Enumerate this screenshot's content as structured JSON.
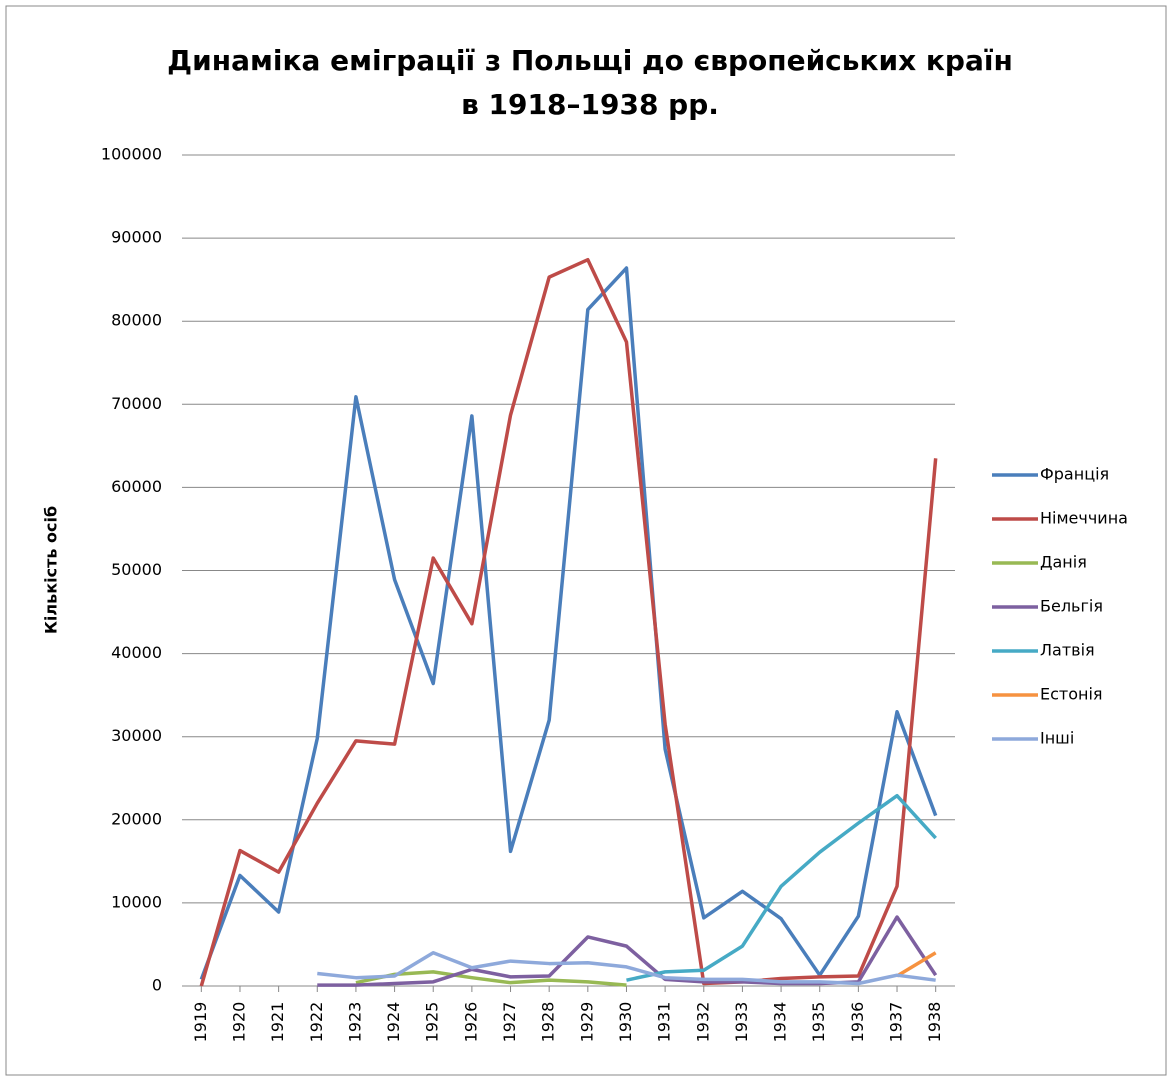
{
  "chart_data": {
    "type": "line",
    "title": [
      "Динаміка еміграції з Польщі до європейських країн",
      "в 1918–1938 рр."
    ],
    "y_label": "Кількість осіб",
    "categories": [
      "1919",
      "1920",
      "1921",
      "1922",
      "1923",
      "1924",
      "1925",
      "1926",
      "1927",
      "1928",
      "1929",
      "1930",
      "1931",
      "1932",
      "1933",
      "1934",
      "1935",
      "1936",
      "1937",
      "1938"
    ],
    "ylim": [
      0,
      100000
    ],
    "yticks": [
      0,
      10000,
      20000,
      30000,
      40000,
      50000,
      60000,
      70000,
      80000,
      90000,
      100000
    ],
    "grid": true,
    "legend": "right",
    "series": [
      {
        "name": "Франція",
        "color": "#4a7ebb",
        "values": [
          800,
          13300,
          8900,
          29800,
          70900,
          48900,
          36400,
          68600,
          16200,
          32000,
          81400,
          86400,
          28500,
          8200,
          11400,
          8100,
          1300,
          8400,
          33000,
          20500
        ]
      },
      {
        "name": "Німеччина",
        "color": "#be4b48",
        "values": [
          0,
          16300,
          13700,
          22000,
          29500,
          29100,
          51500,
          43600,
          68700,
          85300,
          87400,
          77500,
          31500,
          300,
          500,
          900,
          1100,
          1200,
          12000,
          63500
        ]
      },
      {
        "name": "Данія",
        "color": "#98b954",
        "values": [
          null,
          null,
          null,
          null,
          400,
          1400,
          1700,
          1000,
          400,
          700,
          500,
          100,
          null,
          null,
          null,
          null,
          null,
          null,
          null,
          null
        ]
      },
      {
        "name": "Бельгія",
        "color": "#7d60a0",
        "values": [
          null,
          null,
          null,
          100,
          100,
          300,
          500,
          2000,
          1100,
          1200,
          5900,
          4800,
          800,
          500,
          500,
          300,
          300,
          500,
          8300,
          1300
        ]
      },
      {
        "name": "Латвія",
        "color": "#46aac5",
        "values": [
          null,
          null,
          null,
          null,
          null,
          null,
          null,
          null,
          null,
          null,
          null,
          700,
          1700,
          1900,
          4800,
          12000,
          16100,
          19600,
          22900,
          17800
        ]
      },
      {
        "name": "Естонія",
        "color": "#f69240",
        "values": [
          null,
          null,
          null,
          null,
          null,
          null,
          null,
          null,
          null,
          null,
          null,
          null,
          null,
          null,
          null,
          null,
          null,
          null,
          1200,
          4000
        ]
      },
      {
        "name": "Інші",
        "color": "#8ea9db",
        "values": [
          null,
          null,
          null,
          1500,
          1000,
          1200,
          4000,
          2200,
          3000,
          2700,
          2800,
          2300,
          1000,
          800,
          800,
          500,
          500,
          300,
          1300,
          700
        ]
      }
    ]
  }
}
